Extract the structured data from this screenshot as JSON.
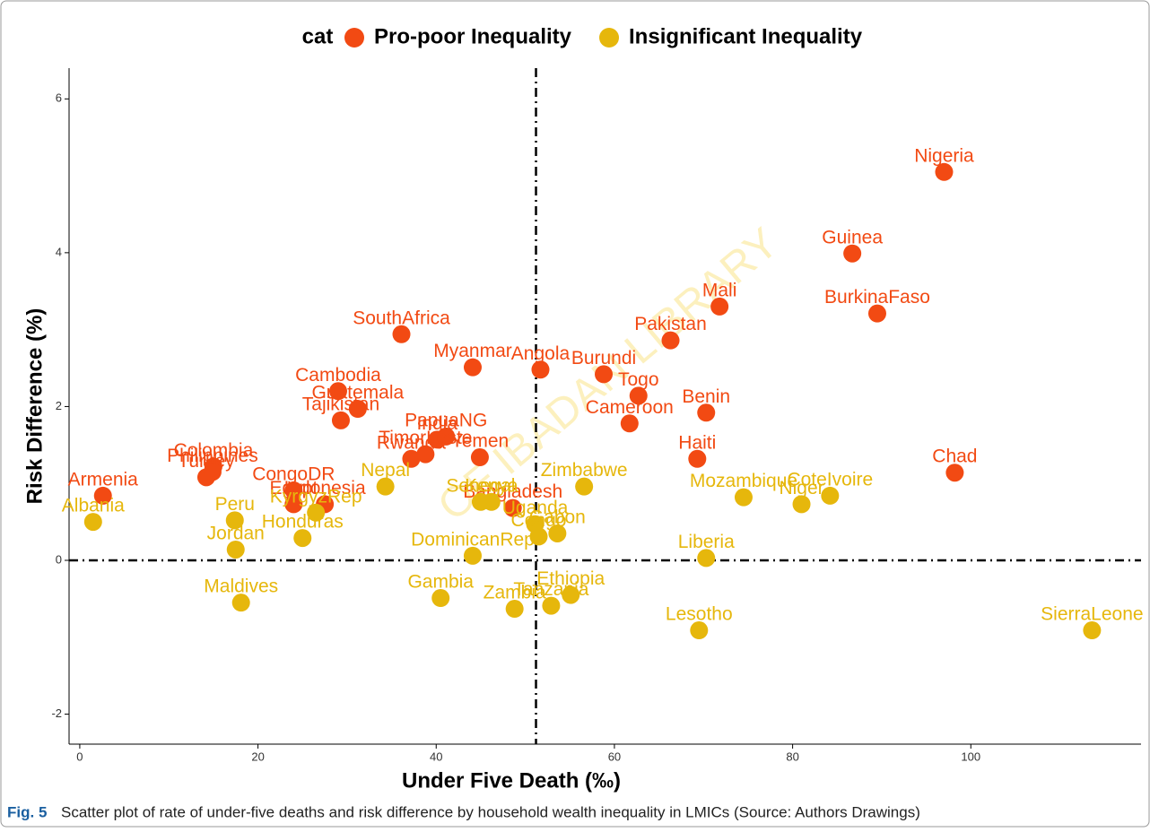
{
  "chart_data": {
    "type": "scatter",
    "legend_title": "cat",
    "x_label": "Under Five Death (‰)",
    "y_label": "Risk Difference (%)",
    "caption_label": "Fig. 5",
    "caption": "Scatter plot of rate of under-five deaths and risk difference by household wealth inequality in LMICs (Source: Authors Drawings)",
    "watermark": "OF IBADAN LIBRARY",
    "xlim": [
      -1.2,
      119.1
    ],
    "ylim": [
      -2.39,
      6.4
    ],
    "xticks": [
      0,
      20,
      40,
      60,
      80,
      100
    ],
    "yticks": [
      -2,
      0,
      2,
      4,
      6
    ],
    "vline": 51.2,
    "hline": 0,
    "series": [
      {
        "name": "Pro-poor Inequality",
        "color": "#f24a13",
        "labels": [
          "Nigeria",
          "Guinea",
          "Mali",
          "BurkinaFaso",
          "Pakistan",
          "SouthAfrica",
          "Myanmar",
          "Angola",
          "Burundi",
          "Cambodia",
          "Guatemala",
          "Tajikistan",
          "India",
          "PapuaNG",
          "Bangladesh",
          "Togo",
          "Cameroon",
          "Benin",
          "Haiti",
          "Chad",
          "Rwanda",
          "TimorLeste",
          "Yemen",
          "Colombia",
          "Turkey",
          "Philippines",
          "Armenia",
          "Egypt",
          "Indonesia",
          "CongoDR"
        ],
        "x": [
          97.0,
          86.7,
          71.8,
          89.5,
          66.3,
          36.1,
          44.1,
          51.7,
          58.8,
          29.0,
          31.2,
          29.3,
          40.1,
          41.1,
          48.6,
          62.7,
          61.7,
          70.3,
          69.3,
          98.2,
          37.2,
          38.8,
          44.9,
          15.0,
          14.2,
          14.9,
          2.6,
          24.0,
          27.5,
          24.0
        ],
        "values": [
          5.05,
          3.99,
          3.3,
          3.21,
          2.86,
          2.94,
          2.51,
          2.48,
          2.42,
          2.2,
          1.97,
          1.82,
          1.57,
          1.61,
          0.68,
          2.14,
          1.78,
          1.92,
          1.32,
          1.14,
          1.32,
          1.38,
          1.34,
          1.22,
          1.08,
          1.15,
          0.84,
          0.73,
          0.73,
          0.91
        ]
      },
      {
        "name": "Insignificant Inequality",
        "color": "#e6b70c",
        "labels": [
          "Zimbabwe",
          "Mozambique",
          "CoteIvoire",
          "Niger",
          "Nepal",
          "Uganda",
          "Gabon",
          "Senegal",
          "Congo",
          "DominicanRep",
          "Kenya",
          "Liberia",
          "Ethiopia",
          "Tanzania",
          "Zambia",
          "Gambia",
          "Lesotho",
          "SierraLeone",
          "KyrgyzRep",
          "Honduras",
          "Peru",
          "Jordan",
          "Maldives",
          "Albania"
        ],
        "x": [
          56.6,
          74.5,
          84.2,
          81.0,
          34.3,
          51.1,
          53.6,
          45.0,
          51.5,
          44.1,
          46.2,
          70.3,
          55.1,
          52.9,
          48.8,
          40.5,
          69.5,
          113.6,
          26.5,
          25.0,
          17.4,
          17.5,
          18.1,
          1.5
        ],
        "values": [
          0.96,
          0.82,
          0.84,
          0.73,
          0.96,
          0.47,
          0.35,
          0.76,
          0.31,
          0.06,
          0.76,
          0.03,
          -0.45,
          -0.59,
          -0.63,
          -0.49,
          -0.91,
          -0.91,
          0.62,
          0.29,
          0.52,
          0.14,
          -0.55,
          0.5
        ]
      }
    ]
  }
}
